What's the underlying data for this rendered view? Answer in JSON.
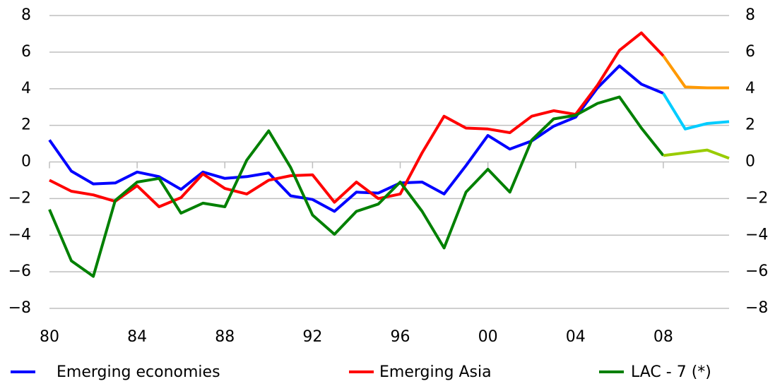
{
  "chart_data": {
    "type": "line",
    "categories": [
      "80",
      null,
      null,
      null,
      "84",
      null,
      null,
      null,
      "88",
      null,
      null,
      null,
      "92",
      null,
      null,
      null,
      "96",
      null,
      null,
      null,
      "00",
      null,
      null,
      null,
      "04",
      null,
      null,
      null,
      "08",
      null,
      null,
      null
    ],
    "forecast_from_index": 28,
    "series": [
      {
        "name": "Emerging economies",
        "color": "#0000ff",
        "forecast_color": "#00ccff",
        "values": [
          1.2,
          -0.5,
          -1.2,
          -1.15,
          -0.55,
          -0.8,
          -1.5,
          -0.55,
          -0.9,
          -0.8,
          -0.6,
          -1.85,
          -2.05,
          -2.7,
          -1.65,
          -1.7,
          -1.15,
          -1.1,
          -1.75,
          -0.2,
          1.45,
          0.7,
          1.15,
          1.95,
          2.45,
          4.05,
          5.25,
          4.25,
          3.75,
          1.8,
          2.1,
          2.2
        ]
      },
      {
        "name": "Emerging Asia",
        "color": "#ff0000",
        "forecast_color": "#ff9900",
        "values": [
          -1.0,
          -1.6,
          -1.8,
          -2.15,
          -1.3,
          -2.45,
          -1.95,
          -0.65,
          -1.45,
          -1.75,
          -1.0,
          -0.75,
          -0.7,
          -2.2,
          -1.1,
          -2.0,
          -1.75,
          0.5,
          2.5,
          1.85,
          1.8,
          1.6,
          2.5,
          2.8,
          2.6,
          4.2,
          6.1,
          7.05,
          5.8,
          4.1,
          4.05,
          4.05
        ]
      },
      {
        "name": "LAC - 7 (*)",
        "color": "#008000",
        "forecast_color": "#99cc00",
        "values": [
          -2.6,
          -5.4,
          -6.25,
          -2.1,
          -1.1,
          -0.9,
          -2.8,
          -2.25,
          -2.45,
          0.1,
          1.7,
          -0.3,
          -2.9,
          -3.95,
          -2.7,
          -2.3,
          -1.1,
          -2.7,
          -4.7,
          -1.65,
          -0.4,
          -1.65,
          1.2,
          2.35,
          2.55,
          3.2,
          3.55,
          1.85,
          0.35,
          0.5,
          0.65,
          0.2
        ]
      }
    ],
    "ylim": [
      -8,
      8
    ],
    "yticks": [
      {
        "value": -8,
        "label": "−8"
      },
      {
        "value": -6,
        "label": "−6"
      },
      {
        "value": -4,
        "label": "−4"
      },
      {
        "value": -2,
        "label": "−2"
      },
      0,
      2,
      4,
      6,
      8
    ],
    "grid": true,
    "legend": "bottom"
  }
}
